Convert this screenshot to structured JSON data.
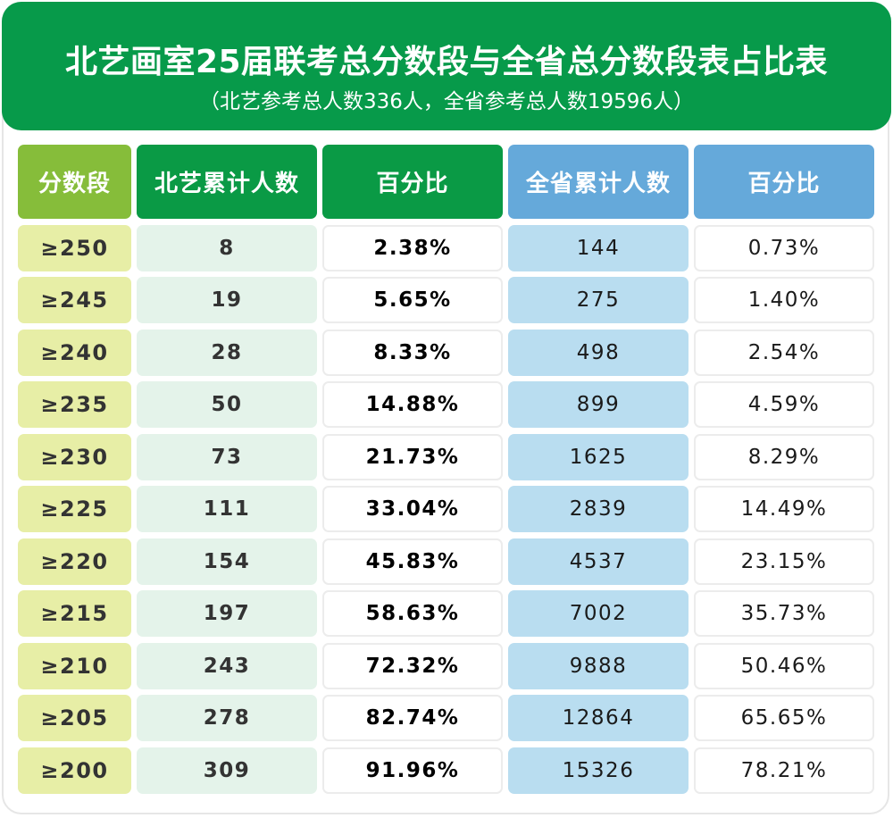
{
  "title": "北艺画室25届联考总分数段与全省总分数段表占比表",
  "subtitle": "（北艺参考总人数336人，全省参考总人数19596人）",
  "colors": {
    "header_green": "#079a4a",
    "col1_header": "#86bd3a",
    "blue_header": "#65a9da",
    "col1_cell": "#e7eea6",
    "col2_cell": "#e4f3ea",
    "col4_cell": "#b9ddf0"
  },
  "chart_data": {
    "type": "table",
    "columns": [
      "分数段",
      "北艺累计人数",
      "百分比",
      "全省累计人数",
      "百分比"
    ],
    "rows": [
      [
        "≥250",
        "8",
        "2.38%",
        "144",
        "0.73%"
      ],
      [
        "≥245",
        "19",
        "5.65%",
        "275",
        "1.40%"
      ],
      [
        "≥240",
        "28",
        "8.33%",
        "498",
        "2.54%"
      ],
      [
        "≥235",
        "50",
        "14.88%",
        "899",
        "4.59%"
      ],
      [
        "≥230",
        "73",
        "21.73%",
        "1625",
        "8.29%"
      ],
      [
        "≥225",
        "111",
        "33.04%",
        "2839",
        "14.49%"
      ],
      [
        "≥220",
        "154",
        "45.83%",
        "4537",
        "23.15%"
      ],
      [
        "≥215",
        "197",
        "58.63%",
        "7002",
        "35.73%"
      ],
      [
        "≥210",
        "243",
        "72.32%",
        "9888",
        "50.46%"
      ],
      [
        "≥205",
        "278",
        "82.74%",
        "12864",
        "65.65%"
      ],
      [
        "≥200",
        "309",
        "91.96%",
        "15326",
        "78.21%"
      ]
    ]
  }
}
